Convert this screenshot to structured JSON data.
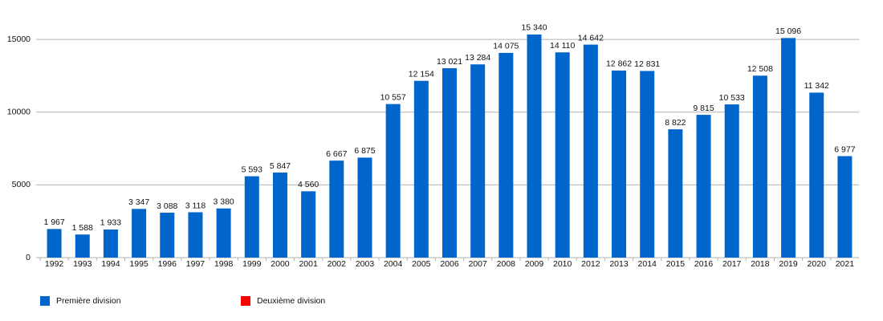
{
  "chart_data": {
    "type": "bar",
    "categories": [
      "1992",
      "1993",
      "1994",
      "1995",
      "1996",
      "1997",
      "1998",
      "1999",
      "2000",
      "2001",
      "2002",
      "2003",
      "2004",
      "2005",
      "2006",
      "2007",
      "2008",
      "2009",
      "2010",
      "2012",
      "2013",
      "2014",
      "2015",
      "2016",
      "2017",
      "2018",
      "2019",
      "2020",
      "2021"
    ],
    "series": [
      {
        "name": "Première division",
        "color": "#0066cc",
        "values": [
          1967,
          1588,
          1933,
          3347,
          3088,
          3118,
          3380,
          5593,
          5847,
          4560,
          6667,
          6875,
          10557,
          12154,
          13021,
          13284,
          14075,
          15340,
          14110,
          14642,
          12862,
          12831,
          8822,
          9815,
          10533,
          12508,
          15096,
          11342,
          6977
        ],
        "value_labels": [
          "1 967",
          "1 588",
          "1 933",
          "3 347",
          "3 088",
          "3 118",
          "3 380",
          "5 593",
          "5 847",
          "4 560",
          "6 667",
          "6 875",
          "10 557",
          "12 154",
          "13 021",
          "13 284",
          "14 075",
          "15 340",
          "14 110",
          "14 642",
          "12 862",
          "12 831",
          "8 822",
          "9 815",
          "10 533",
          "12 508",
          "15 096",
          "11 342",
          "6 977"
        ]
      },
      {
        "name": "Deuxième division",
        "color": "#ff0000",
        "values": [
          null,
          null,
          null,
          null,
          null,
          null,
          null,
          null,
          null,
          null,
          null,
          null,
          null,
          null,
          null,
          null,
          null,
          null,
          null,
          null,
          null,
          null,
          null,
          null,
          null,
          null,
          null,
          null,
          null
        ]
      }
    ],
    "ylim": [
      0,
      16000
    ],
    "yticks": [
      0,
      5000,
      10000,
      15000
    ],
    "grid": true
  }
}
